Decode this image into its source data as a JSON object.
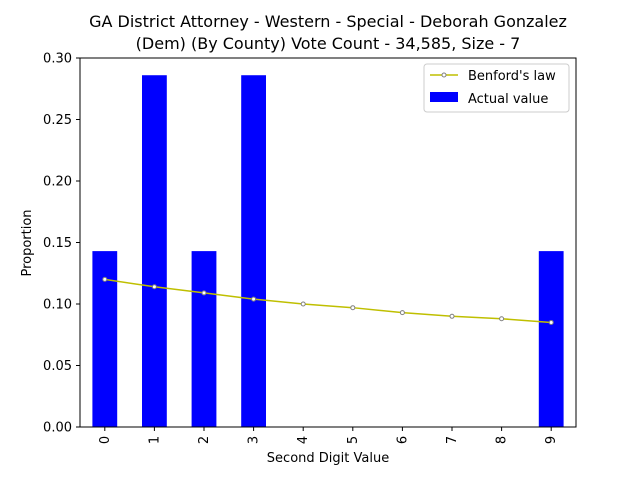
{
  "chart_data": {
    "type": "bar",
    "title_line1": "GA District Attorney - Western - Special - Deborah Gonzalez",
    "title_line2": "(Dem) (By County) Vote Count - 34,585, Size - 7",
    "xlabel": "Second Digit Value",
    "ylabel": "Proportion",
    "categories": [
      "0",
      "1",
      "2",
      "3",
      "4",
      "5",
      "6",
      "7",
      "8",
      "9"
    ],
    "ylim": [
      0,
      0.3
    ],
    "yticks": [
      "0.00",
      "0.05",
      "0.10",
      "0.15",
      "0.20",
      "0.25",
      "0.30"
    ],
    "series": [
      {
        "name": "Actual value",
        "kind": "bar",
        "color": "#0000ff",
        "values": [
          0.143,
          0.286,
          0.143,
          0.286,
          0,
          0,
          0,
          0,
          0,
          0.143
        ]
      },
      {
        "name": "Benford's law",
        "kind": "line",
        "color": "#bfbf00",
        "values": [
          0.12,
          0.114,
          0.109,
          0.104,
          0.1,
          0.097,
          0.093,
          0.09,
          0.088,
          0.085
        ]
      }
    ],
    "legend_position": "top-right",
    "grid": false
  }
}
